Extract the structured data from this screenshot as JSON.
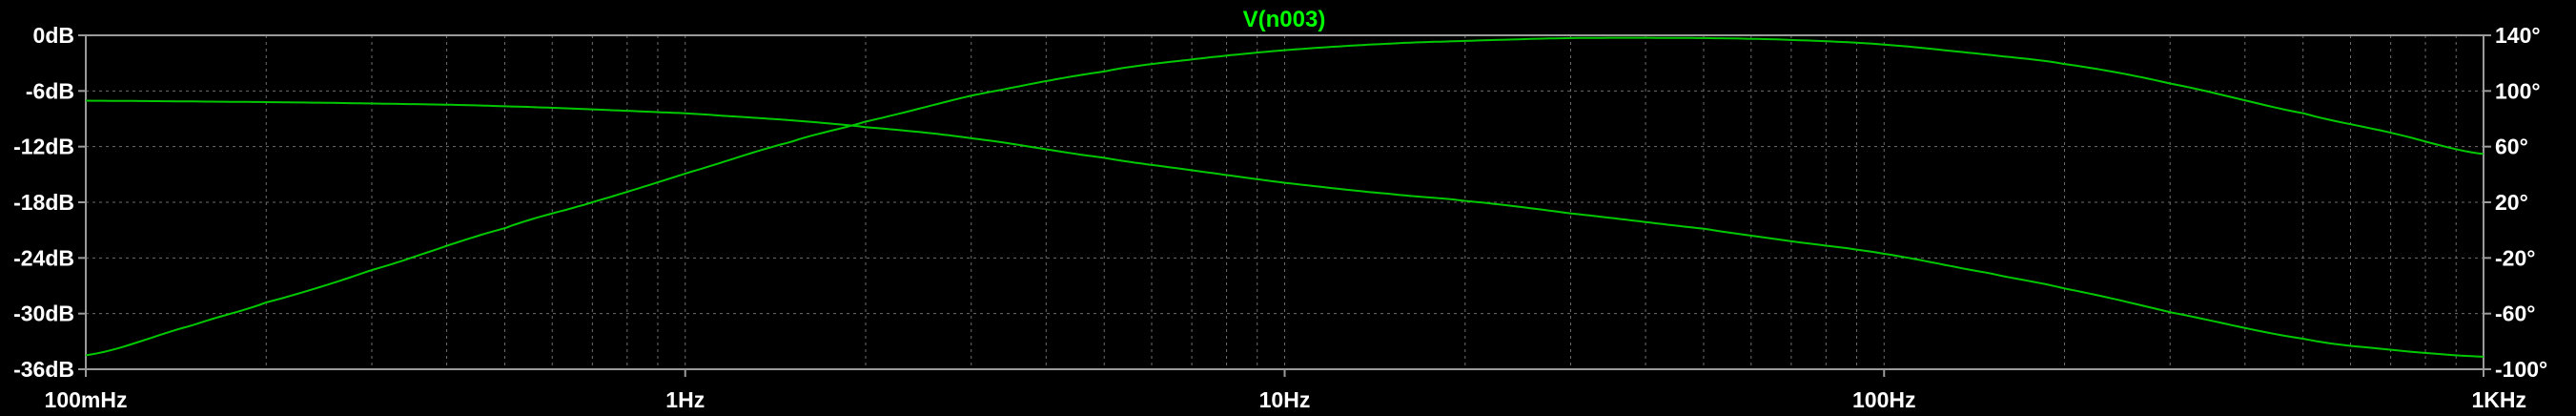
{
  "chart_data": {
    "type": "line",
    "title": "V(n003)",
    "x_scale": "log",
    "xlim": [
      0.1,
      1000
    ],
    "x_ticks": [
      {
        "value": 0.1,
        "label": "100mHz"
      },
      {
        "value": 1,
        "label": "1Hz"
      },
      {
        "value": 10,
        "label": "10Hz"
      },
      {
        "value": 100,
        "label": "100Hz"
      },
      {
        "value": 1000,
        "label": "1KHz"
      }
    ],
    "y_left": {
      "ylim": [
        -36,
        0
      ],
      "ticks": [
        {
          "value": 0,
          "label": "0dB"
        },
        {
          "value": -6,
          "label": "-6dB"
        },
        {
          "value": -12,
          "label": "-12dB"
        },
        {
          "value": -18,
          "label": "-18dB"
        },
        {
          "value": -24,
          "label": "-24dB"
        },
        {
          "value": -30,
          "label": "-30dB"
        },
        {
          "value": -36,
          "label": "-36dB"
        }
      ]
    },
    "y_right": {
      "ylim": [
        -100,
        140
      ],
      "ticks": [
        {
          "value": 140,
          "label": "140°"
        },
        {
          "value": 100,
          "label": "100°"
        },
        {
          "value": 60,
          "label": "60°"
        },
        {
          "value": 20,
          "label": "20°"
        },
        {
          "value": -20,
          "label": "-20°"
        },
        {
          "value": -60,
          "label": "-60°"
        },
        {
          "value": -100,
          "label": "-100°"
        }
      ]
    },
    "grid": true,
    "series": [
      {
        "axis": "left",
        "x": [
          0.1,
          0.15,
          0.2,
          0.3,
          0.5,
          0.7,
          1,
          1.5,
          2,
          3,
          5,
          7,
          10,
          15,
          20,
          30,
          50,
          70,
          100,
          150,
          200,
          300,
          500,
          700,
          1000
        ],
        "y": [
          -34.5,
          -31.3,
          -28.8,
          -25.3,
          -20.8,
          -18.0,
          -14.9,
          -11.5,
          -9.3,
          -6.5,
          -3.9,
          -2.6,
          -1.6,
          -0.9,
          -0.6,
          -0.3,
          -0.3,
          -0.5,
          -1.0,
          -2.1,
          -3.1,
          -5.2,
          -8.4,
          -10.5,
          -12.8
        ]
      },
      {
        "axis": "right",
        "x": [
          0.1,
          0.2,
          0.3,
          0.5,
          1,
          1.5,
          2,
          3,
          5,
          7,
          10,
          15,
          20,
          30,
          50,
          70,
          100,
          150,
          200,
          300,
          500,
          700,
          1000
        ],
        "y": [
          93,
          92,
          91,
          89,
          84,
          79,
          74,
          66,
          52,
          43,
          34,
          26,
          21,
          12,
          1,
          -8,
          -17,
          -31,
          -42,
          -59,
          -78,
          -86,
          -91
        ]
      }
    ]
  },
  "colors": {
    "background": "#000000",
    "trace": "#00c800",
    "title": "#00ff00",
    "grid": "#6e6e6e",
    "axis_text": "#ffffff"
  }
}
